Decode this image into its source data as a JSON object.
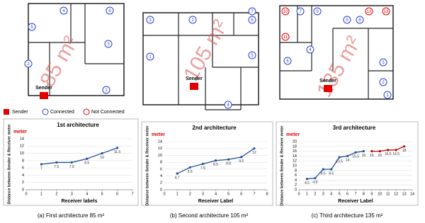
{
  "floor_plans": [
    {
      "area": "85 m²",
      "sender": "Sender",
      "receivers": [
        {
          "label": "1",
          "connected": true
        },
        {
          "label": "2",
          "connected": true
        },
        {
          "label": "3",
          "connected": true
        },
        {
          "label": "4",
          "connected": true
        },
        {
          "label": "5",
          "connected": true
        },
        {
          "label": "6",
          "connected": true
        }
      ]
    },
    {
      "area": "105 m²",
      "sender": "Sender",
      "receivers": [
        {
          "label": "1",
          "connected": true
        },
        {
          "label": "2",
          "connected": true
        },
        {
          "label": "3",
          "connected": true
        },
        {
          "label": "4",
          "connected": true
        },
        {
          "label": "5",
          "connected": true
        },
        {
          "label": "6",
          "connected": true
        },
        {
          "label": "7",
          "connected": true
        }
      ]
    },
    {
      "area": "135 m²",
      "sender": "Sender",
      "receivers": [
        {
          "label": "1",
          "connected": true
        },
        {
          "label": "2",
          "connected": true
        },
        {
          "label": "3",
          "connected": true
        },
        {
          "label": "4",
          "connected": true
        },
        {
          "label": "5",
          "connected": true
        },
        {
          "label": "6",
          "connected": true
        },
        {
          "label": "7",
          "connected": true
        },
        {
          "label": "8",
          "connected": true
        },
        {
          "label": "9",
          "connected": true
        },
        {
          "label": "10",
          "connected": false
        },
        {
          "label": "11",
          "connected": false
        },
        {
          "label": "12",
          "connected": false
        },
        {
          "label": "13",
          "connected": false
        }
      ]
    }
  ],
  "legend": {
    "sender": "Sender",
    "connected": "Connected",
    "not_connected": "Not Connected"
  },
  "chart_data": [
    {
      "type": "line",
      "title": "1st architecture",
      "y_unit": "meter",
      "ylabel": "Distance between Sender & Receiver meter",
      "xlabel": "Receiver labels",
      "x": [
        1,
        2,
        3,
        4,
        5,
        6
      ],
      "series": [
        {
          "color": "#1f4e99",
          "values": [
            7,
            7.5,
            7.5,
            8.5,
            10,
            11.5
          ]
        }
      ],
      "xlim": [
        0,
        7
      ],
      "xticks": [
        0,
        1,
        2,
        3,
        4,
        5,
        6,
        7
      ],
      "ylim": [
        0,
        14
      ],
      "yticks": [
        0,
        2,
        4,
        6,
        8,
        10,
        12,
        14
      ]
    },
    {
      "type": "line",
      "title": "2nd architecture",
      "y_unit": "meter",
      "ylabel": "Distance between Sender & Receiver meter",
      "xlabel": "Receiver Label",
      "x": [
        1,
        2,
        3,
        4,
        5,
        6,
        7
      ],
      "series": [
        {
          "color": "#1f4e99",
          "values": [
            4.7,
            6.5,
            7.5,
            8.5,
            8.8,
            9.5,
            12
          ]
        }
      ],
      "xlim": [
        0,
        8
      ],
      "xticks": [
        0,
        1,
        2,
        3,
        4,
        5,
        6,
        7,
        8
      ],
      "ylim": [
        0,
        14
      ],
      "yticks": [
        0,
        2,
        4,
        6,
        8,
        10,
        12,
        14
      ]
    },
    {
      "type": "line",
      "title": "3rd architecture",
      "y_unit": "meter",
      "ylabel": "Distance between Sender & Receiver meter",
      "xlabel": "Receiver Label",
      "x": [
        1,
        2,
        3,
        4,
        5,
        6,
        7,
        8,
        9,
        10,
        11,
        12,
        13
      ],
      "series": [
        {
          "color": "#1f4e99",
          "values": [
            4.5,
            4.8,
            8.5,
            8.5,
            13.5,
            14,
            15.5,
            16,
            null,
            null,
            null,
            null,
            null
          ]
        },
        {
          "color": "#c00000",
          "values": [
            null,
            null,
            null,
            null,
            null,
            null,
            null,
            null,
            16,
            16,
            16.5,
            16.5,
            18
          ]
        }
      ],
      "xlim": [
        0,
        14
      ],
      "xticks": [
        0,
        1,
        2,
        3,
        4,
        5,
        6,
        7,
        8,
        9,
        10,
        11,
        12,
        13,
        14
      ],
      "ylim": [
        0,
        20
      ],
      "yticks": [
        0,
        2,
        4,
        6,
        8,
        10,
        12,
        14,
        16,
        18,
        20
      ]
    }
  ],
  "captions": [
    "(a) First architecture 85 m²",
    "(b) Second architecture 105 m²",
    "(c) Third architecture 135 m²"
  ]
}
